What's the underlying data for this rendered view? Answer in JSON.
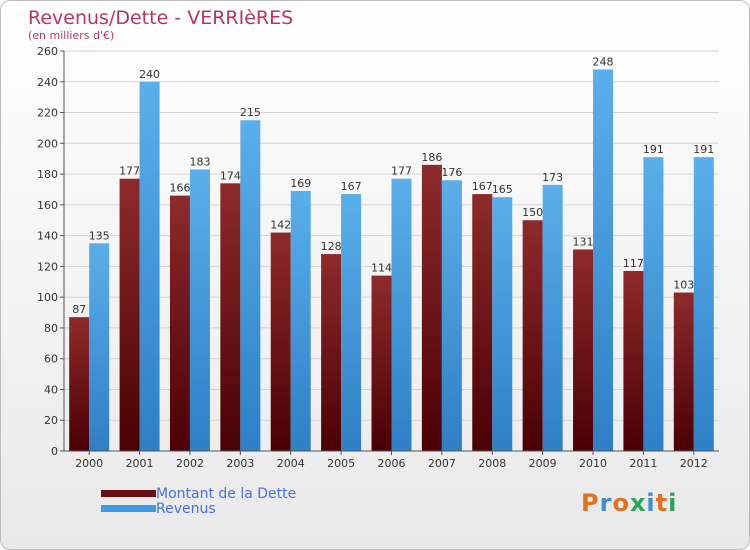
{
  "title": "Revenus/Dette - VERRIèRES",
  "subtitle": "(en milliers d'€)",
  "legend": {
    "items": [
      {
        "label": "Montant de la Dette",
        "color": "#6a0f12"
      },
      {
        "label": "Revenus",
        "color": "#3e9be3"
      }
    ]
  },
  "logo": {
    "letters": [
      "P",
      "r",
      "o",
      "x",
      "i",
      "t",
      "i"
    ],
    "colors": [
      "#e8701a",
      "#3a8fd8",
      "#e8701a",
      "#2aa65a",
      "#3a8fd8",
      "#e8701a",
      "#2aa65a"
    ]
  },
  "chart_data": {
    "type": "bar",
    "categories": [
      "2000",
      "2001",
      "2002",
      "2003",
      "2004",
      "2005",
      "2006",
      "2007",
      "2008",
      "2009",
      "2010",
      "2011",
      "2012"
    ],
    "series": [
      {
        "name": "Montant de la Dette",
        "values": [
          87,
          177,
          166,
          174,
          142,
          128,
          114,
          186,
          167,
          150,
          131,
          117,
          103
        ],
        "color": "#6a0f12"
      },
      {
        "name": "Revenus",
        "values": [
          135,
          240,
          183,
          215,
          169,
          167,
          177,
          176,
          165,
          173,
          248,
          191,
          191
        ],
        "color": "#3e9be3"
      }
    ],
    "ylim": [
      0,
      260
    ],
    "yticks": [
      0,
      20,
      40,
      60,
      80,
      100,
      120,
      140,
      160,
      180,
      200,
      220,
      240,
      260
    ],
    "grid": true,
    "legend_position": "bottom-left"
  }
}
